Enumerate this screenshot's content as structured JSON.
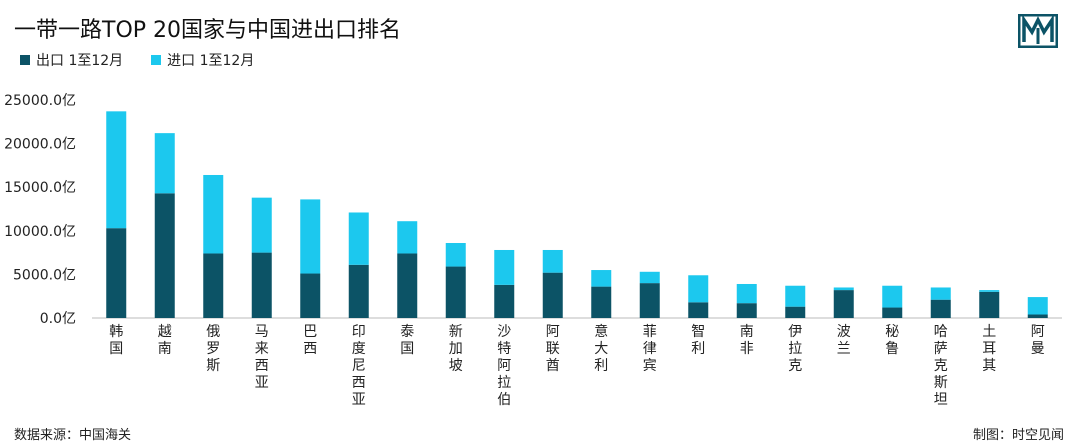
{
  "header": {
    "title": "一带一路TOP 20国家与中国进出口排名"
  },
  "footer": {
    "source": "数据来源：中国海关",
    "credit": "制图：时空见闻"
  },
  "colors": {
    "export": "#0c5366",
    "import": "#1cc8ee",
    "axis": "#bbbbbb"
  },
  "icons": {
    "logo": "brand-logo-icon"
  },
  "chart_data": {
    "type": "bar",
    "stacked": true,
    "categories": [
      "韩国",
      "越南",
      "俄罗斯",
      "马来西亚",
      "巴西",
      "印度尼西亚",
      "泰国",
      "新加坡",
      "沙特阿拉伯",
      "阿联酋",
      "意大利",
      "菲律宾",
      "智利",
      "南非",
      "伊拉克",
      "波兰",
      "秘鲁",
      "哈萨克斯坦",
      "土耳其",
      "阿曼"
    ],
    "series": [
      {
        "name": "出口 1至12月",
        "values": [
          10300,
          14300,
          7400,
          7500,
          5100,
          6100,
          7400,
          5900,
          3800,
          5200,
          3600,
          4000,
          1800,
          1700,
          1300,
          3200,
          1200,
          2100,
          3000,
          400
        ]
      },
      {
        "name": "进口 1至12月",
        "values": [
          13400,
          6900,
          9000,
          6300,
          8500,
          6000,
          3700,
          2700,
          4000,
          2600,
          1900,
          1300,
          3100,
          2200,
          2400,
          300,
          2500,
          1400,
          200,
          2000
        ]
      }
    ],
    "yticks": [
      "25000.0亿",
      "20000.0亿",
      "15000.0亿",
      "10000.0亿",
      "5000.0亿",
      "0.0亿"
    ],
    "ylim": [
      0,
      25000
    ],
    "legend_position": "top-left"
  }
}
